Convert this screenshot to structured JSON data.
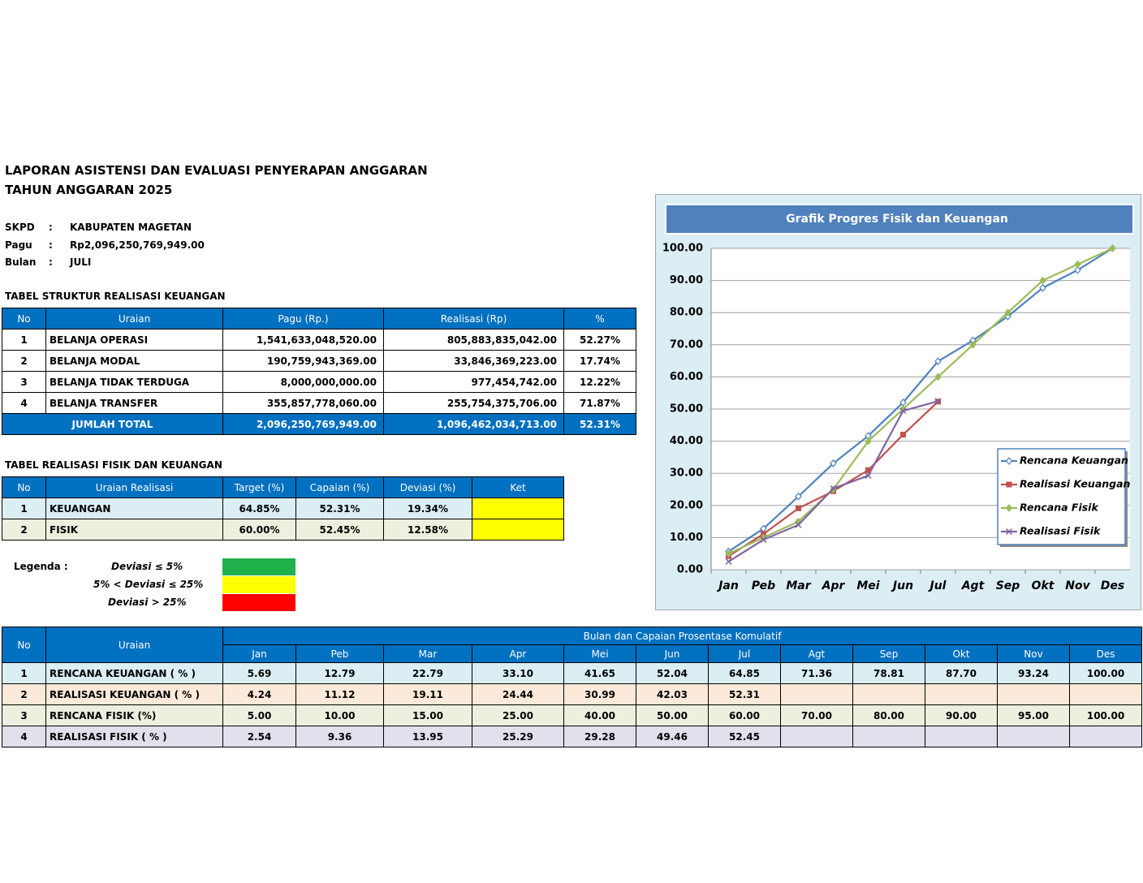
{
  "header": {
    "title": [
      "LAPORAN ASISTENSI DAN EVALUASI PENYERAPAN ANGGARAN",
      "TAHUN ANGGARAN 2025"
    ]
  },
  "info": [
    {
      "label": "SKPD",
      "sep": ":",
      "value": "KABUPATEN MAGETAN"
    },
    {
      "label": "Pagu",
      "sep": ":",
      "value": "Rp2,096,250,769,949.00"
    },
    {
      "label": "Bulan",
      "sep": ":",
      "value": "JULI"
    }
  ],
  "table1": {
    "title": "TABEL STRUKTUR REALISASI KEUANGAN",
    "columns": [
      "No",
      "Uraian",
      "Pagu (Rp.)",
      "Realisasi (Rp)",
      "%"
    ],
    "rows": [
      [
        "1",
        "BELANJA OPERASI",
        "1,541,633,048,520.00",
        "805,883,835,042.00",
        "52.27%"
      ],
      [
        "2",
        "BELANJA MODAL",
        "190,759,943,369.00",
        "33,846,369,223.00",
        "17.74%"
      ],
      [
        "3",
        "BELANJA TIDAK TERDUGA",
        "8,000,000,000.00",
        "977,454,742.00",
        "12.22%"
      ],
      [
        "4",
        "BELANJA TRANSFER",
        "355,857,778,060.00",
        "255,754,375,706.00",
        "71.87%"
      ]
    ],
    "total": [
      "JUMLAH TOTAL",
      "2,096,250,769,949.00",
      "1,096,462,034,713.00",
      "52.31%"
    ]
  },
  "table2": {
    "title": "TABEL REALISASI FISIK DAN KEUANGAN",
    "columns": [
      "No",
      "Uraian Realisasi",
      "Target (%)",
      "Capaian (%)",
      "Deviasi (%)",
      "Ket"
    ],
    "rows": [
      [
        "1",
        "KEUANGAN",
        "64.85%",
        "52.31%",
        "19.34%"
      ],
      [
        "2",
        "FISIK",
        "60.00%",
        "52.45%",
        "12.58%"
      ]
    ]
  },
  "legend": {
    "label": "Legenda :",
    "items": [
      {
        "text": "Deviasi ≤ 5%",
        "color": "#20b14c"
      },
      {
        "text": "5% < Deviasi ≤ 25%",
        "color": "#ffff00"
      },
      {
        "text": "Deviasi > 25%",
        "color": "#ff0000"
      }
    ]
  },
  "chart_data": {
    "type": "line",
    "title": "Grafik Progres Fisik dan Keuangan",
    "categories": [
      "Jan",
      "Peb",
      "Mar",
      "Apr",
      "Mei",
      "Jun",
      "Jul",
      "Agt",
      "Sep",
      "Okt",
      "Nov",
      "Des"
    ],
    "series": [
      {
        "name": "Rencana Keuangan",
        "color": "#4f81bd",
        "marker": "diamond-open",
        "values": [
          5.69,
          12.79,
          22.79,
          33.1,
          41.65,
          52.04,
          64.85,
          71.36,
          78.81,
          87.7,
          93.24,
          100
        ]
      },
      {
        "name": "Realisasi Keuangan",
        "color": "#c0504d",
        "marker": "square",
        "values": [
          4.24,
          11.12,
          19.11,
          24.44,
          30.99,
          42.03,
          52.31,
          null,
          null,
          null,
          null,
          null
        ]
      },
      {
        "name": "Rencana Fisik",
        "color": "#9bbb59",
        "marker": "diamond",
        "values": [
          5,
          10,
          15,
          25,
          40,
          50,
          60,
          70,
          80,
          90,
          95,
          100
        ]
      },
      {
        "name": "Realisasi Fisik",
        "color": "#8064a2",
        "marker": "x",
        "values": [
          2.54,
          9.36,
          13.95,
          25.29,
          29.28,
          49.46,
          52.45,
          null,
          null,
          null,
          null,
          null
        ]
      }
    ],
    "ylim": [
      0,
      100
    ],
    "yticks": [
      {
        "value": 0,
        "label": "0.00"
      },
      {
        "value": 10,
        "label": "10.00"
      },
      {
        "value": 20,
        "label": "20.00"
      },
      {
        "value": 30,
        "label": "30.00"
      },
      {
        "value": 40,
        "label": "40.00"
      },
      {
        "value": 50,
        "label": "50.00"
      },
      {
        "value": 60,
        "label": "60.00"
      },
      {
        "value": 70,
        "label": "70.00"
      },
      {
        "value": 80,
        "label": "80.00"
      },
      {
        "value": 90,
        "label": "90.00"
      },
      {
        "value": 100,
        "label": "100.00"
      }
    ],
    "grid": true,
    "legend": "lower right"
  },
  "table3": {
    "columns": [
      "No",
      "Uraian"
    ],
    "group": "Bulan dan Capaian Prosentase Komulatif",
    "rows": [
      [
        "1",
        "RENCANA KEUANGAN ( % )",
        "5.69",
        "12.79",
        "22.79",
        "33.10",
        "41.65",
        "52.04",
        "64.85",
        "71.36",
        "78.81",
        "87.70",
        "93.24",
        "100.00"
      ],
      [
        "2",
        "REALISASI KEUANGAN ( % )",
        "4.24",
        "11.12",
        "19.11",
        "24.44",
        "30.99",
        "42.03",
        "52.31"
      ],
      [
        "3",
        "RENCANA FISIK (%)",
        "5.00",
        "10.00",
        "15.00",
        "25.00",
        "40.00",
        "50.00",
        "60.00",
        "70.00",
        "80.00",
        "90.00",
        "95.00",
        "100.00"
      ],
      [
        "4",
        "REALISASI FISIK ( % )",
        "2.54",
        "9.36",
        "13.95",
        "25.29",
        "29.28",
        "49.46",
        "52.45"
      ]
    ]
  }
}
